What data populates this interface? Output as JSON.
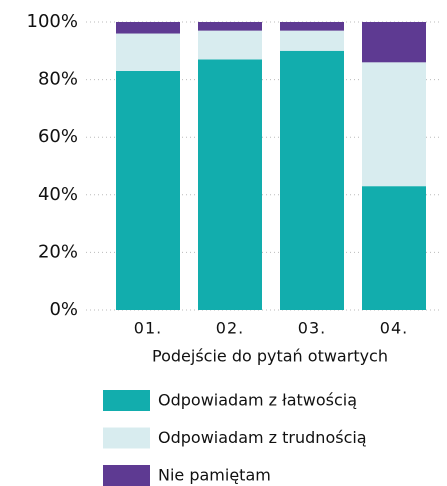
{
  "chart_data": {
    "type": "stacked_bar",
    "x_label": "Podejście do pytań otwartych",
    "categories": [
      "01.",
      "02.",
      "03.",
      "04."
    ],
    "series": [
      {
        "name": "Odpowiadam z łatwością",
        "color": "#12adad",
        "values": [
          83,
          87,
          90,
          43
        ]
      },
      {
        "name": "Odpowiadam z trudnością",
        "color": "#d8ecef",
        "values": [
          13,
          10,
          7,
          43
        ]
      },
      {
        "name": "Nie pamiętam",
        "color": "#5e3a92",
        "values": [
          4,
          3,
          3,
          14
        ]
      }
    ],
    "ylim": [
      0,
      100
    ],
    "yticks": [
      {
        "value": 0,
        "label": "0%"
      },
      {
        "value": 20,
        "label": "20%"
      },
      {
        "value": 40,
        "label": "40%"
      },
      {
        "value": 60,
        "label": "60%"
      },
      {
        "value": 80,
        "label": "80%"
      },
      {
        "value": 100,
        "label": "100%"
      }
    ],
    "grid": true
  }
}
